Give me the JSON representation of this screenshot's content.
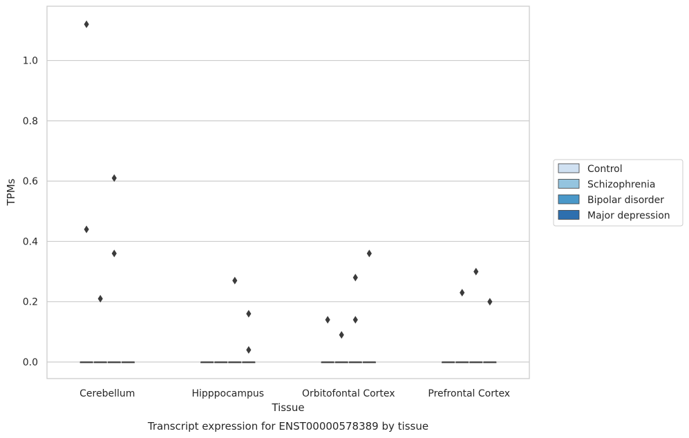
{
  "caption": "Transcript expression for ENST00000578389 by tissue",
  "chart_data": {
    "type": "box",
    "title": "",
    "xlabel": "Tissue",
    "ylabel": "TPMs",
    "ylim": [
      -0.055,
      1.18
    ],
    "yticks": [
      0.0,
      0.2,
      0.4,
      0.6,
      0.8,
      1.0
    ],
    "ytick_labels": [
      "0.0",
      "0.2",
      "0.4",
      "0.6",
      "0.8",
      "1.0"
    ],
    "grid": "horizontal",
    "legend_position": "center-right",
    "categories": [
      "Cerebellum",
      "Hipppocampus",
      "Orbitofontal Cortex",
      "Prefrontal Cortex"
    ],
    "series": [
      {
        "name": "Control",
        "color": "#d0e1f2",
        "boxes": [
          {
            "q1": 0,
            "median": 0,
            "q3": 0,
            "whisker_low": 0,
            "whisker_high": 0,
            "outliers": [
              1.12,
              0.44
            ]
          },
          {
            "q1": 0,
            "median": 0,
            "q3": 0,
            "whisker_low": 0,
            "whisker_high": 0,
            "outliers": []
          },
          {
            "q1": 0,
            "median": 0,
            "q3": 0,
            "whisker_low": 0,
            "whisker_high": 0,
            "outliers": [
              0.14
            ]
          },
          {
            "q1": 0,
            "median": 0,
            "q3": 0,
            "whisker_low": 0,
            "whisker_high": 0,
            "outliers": []
          }
        ]
      },
      {
        "name": "Schizophrenia",
        "color": "#94c4df",
        "boxes": [
          {
            "q1": 0,
            "median": 0,
            "q3": 0,
            "whisker_low": 0,
            "whisker_high": 0,
            "outliers": [
              0.21
            ]
          },
          {
            "q1": 0,
            "median": 0,
            "q3": 0,
            "whisker_low": 0,
            "whisker_high": 0,
            "outliers": []
          },
          {
            "q1": 0,
            "median": 0,
            "q3": 0,
            "whisker_low": 0,
            "whisker_high": 0,
            "outliers": [
              0.09
            ]
          },
          {
            "q1": 0,
            "median": 0,
            "q3": 0,
            "whisker_low": 0,
            "whisker_high": 0,
            "outliers": [
              0.23
            ]
          }
        ]
      },
      {
        "name": "Bipolar disorder",
        "color": "#4a98c9",
        "boxes": [
          {
            "q1": 0,
            "median": 0,
            "q3": 0,
            "whisker_low": 0,
            "whisker_high": 0,
            "outliers": [
              0.61,
              0.36
            ]
          },
          {
            "q1": 0,
            "median": 0,
            "q3": 0,
            "whisker_low": 0,
            "whisker_high": 0,
            "outliers": [
              0.27
            ]
          },
          {
            "q1": 0,
            "median": 0,
            "q3": 0,
            "whisker_low": 0,
            "whisker_high": 0,
            "outliers": [
              0.28,
              0.14
            ]
          },
          {
            "q1": 0,
            "median": 0,
            "q3": 0,
            "whisker_low": 0,
            "whisker_high": 0,
            "outliers": [
              0.3
            ]
          }
        ]
      },
      {
        "name": "Major depression",
        "color": "#2e6fae",
        "boxes": [
          {
            "q1": 0,
            "median": 0,
            "q3": 0,
            "whisker_low": 0,
            "whisker_high": 0,
            "outliers": []
          },
          {
            "q1": 0,
            "median": 0,
            "q3": 0,
            "whisker_low": 0,
            "whisker_high": 0,
            "outliers": [
              0.16,
              0.04
            ]
          },
          {
            "q1": 0,
            "median": 0,
            "q3": 0,
            "whisker_low": 0,
            "whisker_high": 0,
            "outliers": [
              0.36
            ]
          },
          {
            "q1": 0,
            "median": 0,
            "q3": 0,
            "whisker_low": 0,
            "whisker_high": 0,
            "outliers": [
              0.2
            ]
          }
        ]
      }
    ]
  },
  "colors": {
    "grid": "#cccccc",
    "frame": "#cccccc",
    "marker": "#3b3b3b",
    "text": "#262626"
  }
}
